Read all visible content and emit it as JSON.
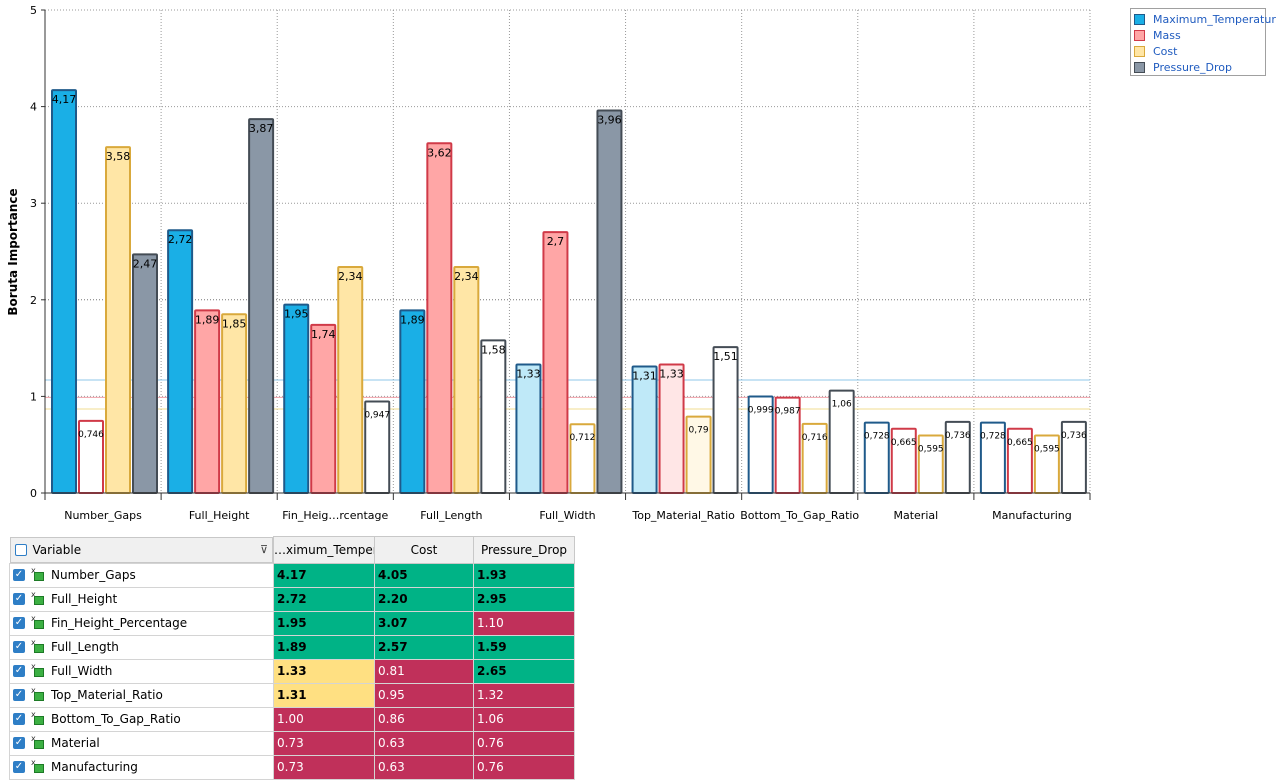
{
  "chart_data": {
    "type": "bar",
    "ylabel": "Boruta Importance",
    "ylim": [
      0,
      5
    ],
    "yticks": [
      "0",
      "1",
      "2",
      "3",
      "4",
      "5"
    ],
    "categories": [
      "Number_Gaps",
      "Full_Height",
      "Fin_Heig…rcentage",
      "Full_Length",
      "Full_Width",
      "Top_Material_Ratio",
      "Bottom_To_Gap_Ratio",
      "Material",
      "Manufacturing"
    ],
    "series": [
      {
        "name": "Maximum_Temperature",
        "color": "#1aafe6",
        "edge": "#1f5a8a",
        "values": [
          4.17,
          2.72,
          1.95,
          1.89,
          1.33,
          1.31,
          0.999,
          0.728,
          0.728
        ],
        "labels": [
          "4,17",
          "2,72",
          "1,95",
          "1,89",
          "1,33",
          "1,31",
          "0,999",
          "0,728",
          "0,728"
        ],
        "fill_mode": [
          "full",
          "full",
          "full",
          "full",
          "light",
          "light",
          "none",
          "none",
          "none"
        ]
      },
      {
        "name": "Mass",
        "color": "#ffa6a6",
        "edge": "#d03a48",
        "values": [
          0.746,
          1.89,
          1.74,
          3.62,
          2.7,
          1.33,
          0.987,
          0.665,
          0.665
        ],
        "labels": [
          "0,746",
          "1,89",
          "1,74",
          "3,62",
          "2,7",
          "1,33",
          "0,987",
          "0,665",
          "0,665"
        ],
        "fill_mode": [
          "none",
          "full",
          "full",
          "full",
          "full",
          "light",
          "none",
          "none",
          "none"
        ]
      },
      {
        "name": "Cost",
        "color": "#ffe6a6",
        "edge": "#d9a93c",
        "values": [
          3.58,
          1.85,
          2.34,
          2.34,
          0.712,
          0.79,
          0.716,
          0.595,
          0.595
        ],
        "labels": [
          "3,58",
          "1,85",
          "2,34",
          "2,34",
          "0,712",
          "0,79",
          "0,716",
          "0,595",
          "0,595"
        ],
        "fill_mode": [
          "full",
          "full",
          "full",
          "full",
          "none",
          "light",
          "none",
          "none",
          "none"
        ]
      },
      {
        "name": "Pressure_Drop",
        "color": "#8a97a6",
        "edge": "#444c55",
        "values": [
          2.47,
          3.87,
          0.947,
          1.58,
          3.96,
          1.51,
          1.06,
          0.736,
          0.736
        ],
        "labels": [
          "2,47",
          "3,87",
          "0,947",
          "1,58",
          "3,96",
          "1,51",
          "1,06",
          "0,736",
          "0,736"
        ],
        "fill_mode": [
          "full",
          "full",
          "none",
          "none",
          "full",
          "none",
          "none",
          "none",
          "none"
        ]
      }
    ],
    "reference_lines": [
      {
        "value": 1.17,
        "color": "#8fc7e8"
      },
      {
        "value": 0.99,
        "color": "#f0a0a8"
      },
      {
        "value": 0.87,
        "color": "#f0dc90"
      }
    ],
    "grid": true,
    "legend_position": "top-right"
  },
  "table": {
    "headers": [
      "Variable",
      "…ximum_Temperatu",
      "Cost",
      "Pressure_Drop"
    ],
    "check_glyph": "✓",
    "filter_glyph": "⊽",
    "icon_sup": "x",
    "rows": [
      {
        "name": "Number_Gaps",
        "v": [
          "4.17",
          "4.05",
          "1.93"
        ],
        "s": [
          "good",
          "good",
          "good"
        ]
      },
      {
        "name": "Full_Height",
        "v": [
          "2.72",
          "2.20",
          "2.95"
        ],
        "s": [
          "good",
          "good",
          "good"
        ]
      },
      {
        "name": "Fin_Height_Percentage",
        "v": [
          "1.95",
          "3.07",
          "1.10"
        ],
        "s": [
          "good",
          "good",
          "bad"
        ]
      },
      {
        "name": "Full_Length",
        "v": [
          "1.89",
          "2.57",
          "1.59"
        ],
        "s": [
          "good",
          "good",
          "good"
        ]
      },
      {
        "name": "Full_Width",
        "v": [
          "1.33",
          "0.81",
          "2.65"
        ],
        "s": [
          "mid",
          "bad",
          "good"
        ]
      },
      {
        "name": "Top_Material_Ratio",
        "v": [
          "1.31",
          "0.95",
          "1.32"
        ],
        "s": [
          "mid",
          "bad",
          "bad"
        ]
      },
      {
        "name": "Bottom_To_Gap_Ratio",
        "v": [
          "1.00",
          "0.86",
          "1.06"
        ],
        "s": [
          "bad",
          "bad",
          "bad"
        ]
      },
      {
        "name": "Material",
        "v": [
          "0.73",
          "0.63",
          "0.76"
        ],
        "s": [
          "bad",
          "bad",
          "bad"
        ]
      },
      {
        "name": "Manufacturing",
        "v": [
          "0.73",
          "0.63",
          "0.76"
        ],
        "s": [
          "bad",
          "bad",
          "bad"
        ]
      }
    ]
  }
}
